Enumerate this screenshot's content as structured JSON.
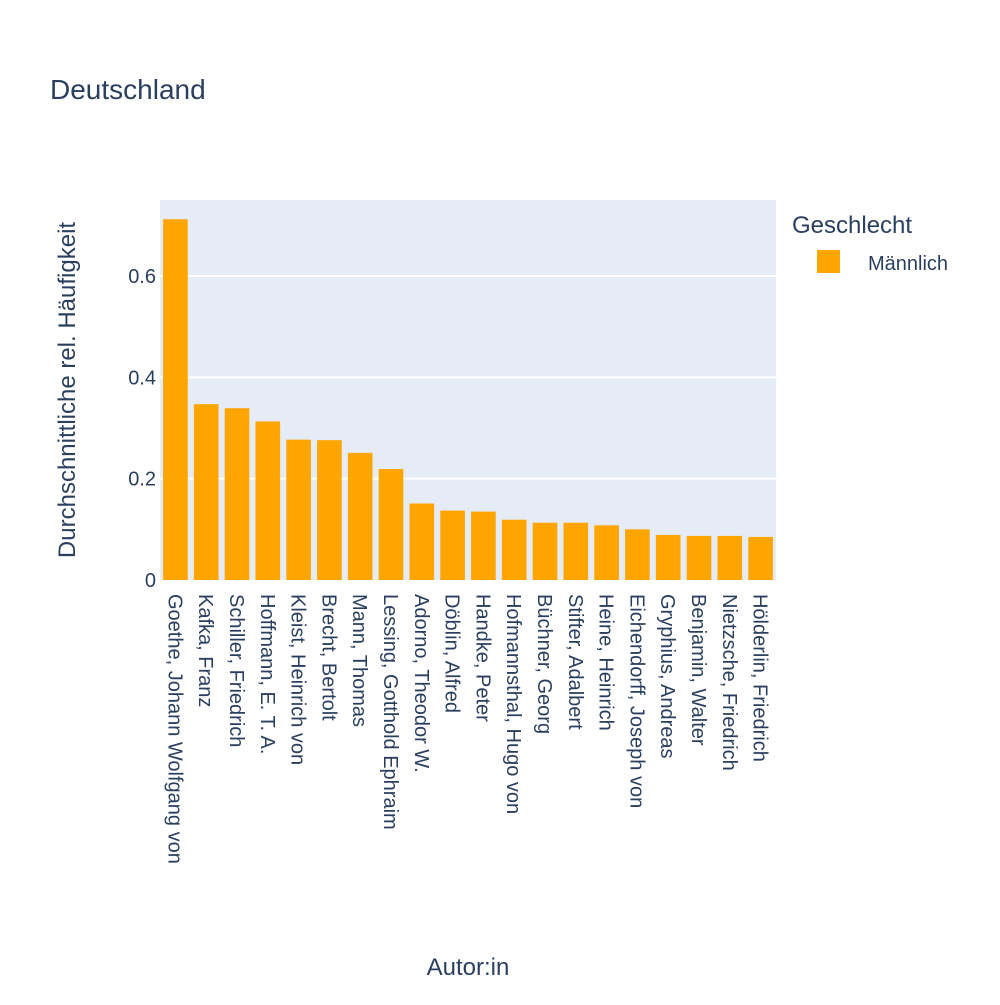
{
  "chart_data": {
    "type": "bar",
    "title": "Deutschland",
    "xlabel": "Autor:in",
    "ylabel": "Durchschnittliche rel. Häufigkeit",
    "ylim": [
      0,
      0.75
    ],
    "y_ticks": [
      0,
      0.2,
      0.4,
      0.6
    ],
    "y_tick_labels": [
      "0",
      "0.2",
      "0.4",
      "0.6"
    ],
    "grid": true,
    "legend_position": "top-right",
    "legend_title": "Geschlecht",
    "categories": [
      "Goethe, Johann Wolfgang von",
      "Kafka, Franz",
      "Schiller, Friedrich",
      "Hoffmann, E. T. A.",
      "Kleist, Heinrich von",
      "Brecht, Bertolt",
      "Mann, Thomas",
      "Lessing, Gotthold Ephraim",
      "Adorno, Theodor W.",
      "Döblin, Alfred",
      "Handke, Peter",
      "Hofmannsthal, Hugo von",
      "Büchner, Georg",
      "Stifter, Adalbert",
      "Heine, Heinrich",
      "Eichendorff, Joseph von",
      "Gryphius, Andreas",
      "Benjamin, Walter",
      "Nietzsche, Friedrich",
      "Hölderlin, Friedrich"
    ],
    "series": [
      {
        "name": "Männlich",
        "color": "#FFA500",
        "values": [
          0.712,
          0.347,
          0.339,
          0.313,
          0.277,
          0.276,
          0.251,
          0.219,
          0.151,
          0.137,
          0.135,
          0.119,
          0.113,
          0.113,
          0.108,
          0.1,
          0.089,
          0.087,
          0.087,
          0.085
        ]
      }
    ],
    "colors": {
      "plot_background": "#E5ECF6",
      "gridline": "#FFFFFF",
      "text": "#2a3f5f"
    }
  }
}
